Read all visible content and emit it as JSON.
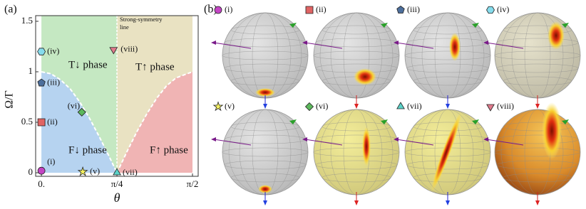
{
  "chart_data": {
    "type": "scatter",
    "panel_label": "(a)",
    "x_label": "θ",
    "y_label": "Ω/Γ",
    "xlim": [
      -0.06,
      1.63
    ],
    "ylim": [
      -0.035,
      1.556
    ],
    "xticks": [
      {
        "value": 0,
        "label": "0."
      },
      {
        "value": 0.7854,
        "label": "π/4"
      },
      {
        "value": 1.5708,
        "label": "π/2"
      }
    ],
    "yticks": [
      0,
      0.5,
      1,
      1.5
    ],
    "symmetry_line_x": 0.7854,
    "annotation": [
      "Strong-symmetry",
      "line"
    ],
    "regions": [
      {
        "name": "T↓ phase",
        "color": "#c5e8c2"
      },
      {
        "name": "T↑ phase",
        "color": "#e9e2c2"
      },
      {
        "name": "F↓ phase",
        "color": "#b6d3f0"
      },
      {
        "name": "F↑ phase",
        "color": "#f0b4b4"
      }
    ],
    "boundaries": [
      {
        "x": [
          0,
          0.1,
          0.2,
          0.3,
          0.4,
          0.5,
          0.6,
          0.7,
          0.7854
        ],
        "values": [
          1,
          0.98,
          0.92,
          0.83,
          0.7,
          0.54,
          0.36,
          0.17,
          0
        ]
      },
      {
        "x": [
          0.7854,
          0.9,
          1.0,
          1.1,
          1.2,
          1.3,
          1.4,
          1.5708
        ],
        "values": [
          0,
          0.23,
          0.42,
          0.59,
          0.74,
          0.86,
          0.94,
          1.0
        ]
      }
    ],
    "series": [
      {
        "name": "(i)",
        "color": "#c445c4",
        "marker": "circle",
        "x": [
          0
        ],
        "values": [
          0.02
        ]
      },
      {
        "name": "(ii)",
        "color": "#e06464",
        "marker": "square",
        "x": [
          0
        ],
        "values": [
          0.5
        ]
      },
      {
        "name": "(iii)",
        "color": "#4d6f9c",
        "marker": "pentagon",
        "x": [
          0
        ],
        "values": [
          0.89
        ]
      },
      {
        "name": "(iv)",
        "color": "#86dcec",
        "marker": "hexagon",
        "x": [
          0
        ],
        "values": [
          1.2
        ]
      },
      {
        "name": "(v)",
        "color": "#f4f060",
        "marker": "star",
        "x": [
          0.43
        ],
        "values": [
          0.01
        ]
      },
      {
        "name": "(vi)",
        "color": "#5cb85c",
        "marker": "diamond",
        "x": [
          0.42
        ],
        "values": [
          0.6
        ]
      },
      {
        "name": "(vii)",
        "color": "#5ad2c8",
        "marker": "triangle-up",
        "x": [
          0.7854
        ],
        "values": [
          0
        ]
      },
      {
        "name": "(viii)",
        "color": "#e07a8c",
        "marker": "triangle-down",
        "x": [
          0.75
        ],
        "values": [
          1.22
        ]
      }
    ]
  },
  "panel_b": {
    "label": "(b)"
  }
}
